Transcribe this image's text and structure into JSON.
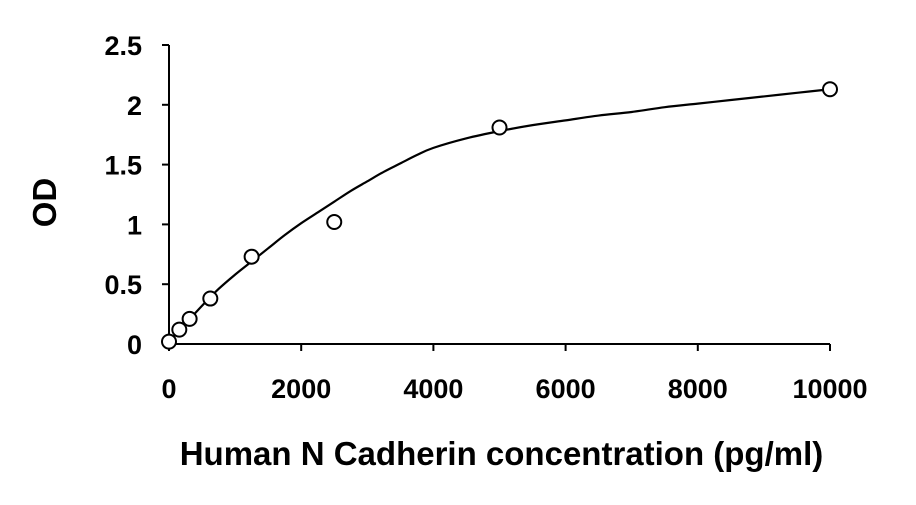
{
  "chart_data": {
    "type": "scatter",
    "title": "",
    "xlabel": "Human N Cadherin concentration (pg/ml)",
    "ylabel": "OD",
    "xlim": [
      0,
      10000
    ],
    "ylim": [
      0,
      2.5
    ],
    "x_ticks": [
      0,
      2000,
      4000,
      6000,
      8000,
      10000
    ],
    "x_tick_labels": [
      "0",
      "2000",
      "4000",
      "6000",
      "8000",
      "10000"
    ],
    "y_ticks": [
      0,
      0.5,
      1,
      1.5,
      2,
      2.5
    ],
    "y_tick_labels": [
      "0",
      "0.5",
      "1",
      "1.5",
      "2",
      "2.5"
    ],
    "grid": false,
    "legend": "none",
    "series": [
      {
        "type": "scatter",
        "marker": "open-circle",
        "x": [
          0,
          156,
          312,
          625,
          1250,
          2500,
          5000,
          10000
        ],
        "y": [
          0.02,
          0.12,
          0.21,
          0.38,
          0.73,
          1.02,
          1.81,
          2.13
        ]
      },
      {
        "type": "line",
        "style": "smooth-fit",
        "x": [
          0,
          250,
          500,
          750,
          1000,
          1250,
          1500,
          1750,
          2000,
          2250,
          2500,
          2750,
          3000,
          3250,
          3500,
          3750,
          4000,
          4500,
          5000,
          5500,
          6000,
          6500,
          7000,
          7500,
          8000,
          8500,
          9000,
          9500,
          10000
        ],
        "y": [
          0.02,
          0.17,
          0.32,
          0.46,
          0.58,
          0.69,
          0.8,
          0.91,
          1.01,
          1.1,
          1.19,
          1.28,
          1.36,
          1.44,
          1.51,
          1.58,
          1.64,
          1.72,
          1.78,
          1.83,
          1.87,
          1.91,
          1.94,
          1.98,
          2.01,
          2.04,
          2.07,
          2.1,
          2.13
        ]
      }
    ]
  }
}
